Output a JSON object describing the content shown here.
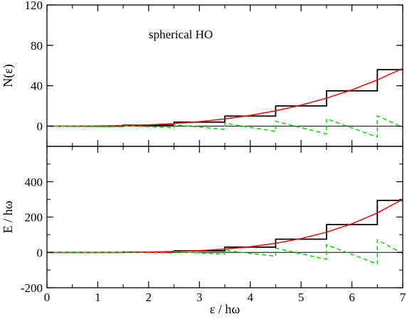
{
  "chart_data": [
    {
      "type": "line",
      "panel": "top",
      "ylabel": "N(ε)",
      "xlim": [
        0,
        7
      ],
      "ylim": [
        -20,
        120
      ],
      "yticks": [
        0,
        40,
        80,
        120
      ],
      "annotation": "spherical HO",
      "series": [
        {
          "style": "staircase",
          "color": "#000000",
          "points": [
            [
              0,
              0
            ],
            [
              1.5,
              0
            ],
            [
              1.5,
              1
            ],
            [
              2.5,
              1
            ],
            [
              2.5,
              4
            ],
            [
              3.5,
              4
            ],
            [
              3.5,
              10
            ],
            [
              4.5,
              10
            ],
            [
              4.5,
              20
            ],
            [
              5.5,
              20
            ],
            [
              5.5,
              35
            ],
            [
              6.5,
              35
            ],
            [
              6.5,
              56
            ],
            [
              7,
              56
            ]
          ]
        },
        {
          "style": "smooth",
          "color": "#ff0000",
          "points": [
            [
              0,
              0
            ],
            [
              0.5,
              0.02
            ],
            [
              1,
              0.17
            ],
            [
              1.5,
              0.56
            ],
            [
              2,
              1.33
            ],
            [
              2.5,
              2.6
            ],
            [
              3,
              4.5
            ],
            [
              3.5,
              7.15
            ],
            [
              4,
              10.67
            ],
            [
              4.5,
              15.19
            ],
            [
              5,
              20.83
            ],
            [
              5.5,
              27.73
            ],
            [
              6,
              36
            ],
            [
              6.5,
              45.77
            ],
            [
              7,
              57.17
            ]
          ]
        },
        {
          "style": "oscillating",
          "color": "#00dd00",
          "points": [
            [
              0,
              0
            ],
            [
              1.5,
              -0.56
            ],
            [
              1.5,
              0.44
            ],
            [
              2.5,
              -1.6
            ],
            [
              2.5,
              1.4
            ],
            [
              3.5,
              -3.15
            ],
            [
              3.5,
              2.85
            ],
            [
              4.5,
              -5.19
            ],
            [
              4.5,
              4.81
            ],
            [
              5.5,
              -7.73
            ],
            [
              5.5,
              7.27
            ],
            [
              6.5,
              -10.77
            ],
            [
              6.5,
              10.23
            ],
            [
              7,
              -1.17
            ]
          ]
        }
      ]
    },
    {
      "type": "line",
      "panel": "bottom",
      "xlabel": "ε / hω",
      "ylabel": "E / hω",
      "xlim": [
        0,
        7
      ],
      "ylim": [
        -200,
        600
      ],
      "xticks": [
        0,
        1,
        2,
        3,
        4,
        5,
        6,
        7
      ],
      "yticks": [
        -200,
        0,
        200,
        400
      ],
      "series": [
        {
          "style": "staircase",
          "color": "#000000",
          "points": [
            [
              0,
              0
            ],
            [
              1.5,
              0
            ],
            [
              1.5,
              1.5
            ],
            [
              2.5,
              1.5
            ],
            [
              2.5,
              9
            ],
            [
              3.5,
              9
            ],
            [
              3.5,
              30
            ],
            [
              4.5,
              30
            ],
            [
              4.5,
              75
            ],
            [
              5.5,
              75
            ],
            [
              5.5,
              157.5
            ],
            [
              6.5,
              157.5
            ],
            [
              6.5,
              294
            ],
            [
              7,
              294
            ]
          ]
        },
        {
          "style": "smooth",
          "color": "#ff0000",
          "points": [
            [
              0,
              0
            ],
            [
              0.5,
              0.01
            ],
            [
              1,
              0.13
            ],
            [
              1.5,
              0.63
            ],
            [
              2,
              2
            ],
            [
              2.5,
              4.88
            ],
            [
              3,
              10.13
            ],
            [
              3.5,
              18.76
            ],
            [
              4,
              32
            ],
            [
              4.5,
              51.26
            ],
            [
              5,
              78.13
            ],
            [
              5.5,
              114.38
            ],
            [
              6,
              162
            ],
            [
              6.5,
              223.13
            ],
            [
              7,
              300.13
            ]
          ]
        },
        {
          "style": "oscillating",
          "color": "#00dd00",
          "points": [
            [
              0,
              0
            ],
            [
              1.5,
              -0.63
            ],
            [
              1.5,
              0.87
            ],
            [
              2.5,
              -3.38
            ],
            [
              2.5,
              4.12
            ],
            [
              3.5,
              -9.76
            ],
            [
              3.5,
              11.24
            ],
            [
              4.5,
              -21.26
            ],
            [
              4.5,
              23.74
            ],
            [
              5.5,
              -39.38
            ],
            [
              5.5,
              43.12
            ],
            [
              6.5,
              -65.63
            ],
            [
              6.5,
              70.87
            ],
            [
              7,
              -6.13
            ]
          ]
        }
      ]
    }
  ]
}
